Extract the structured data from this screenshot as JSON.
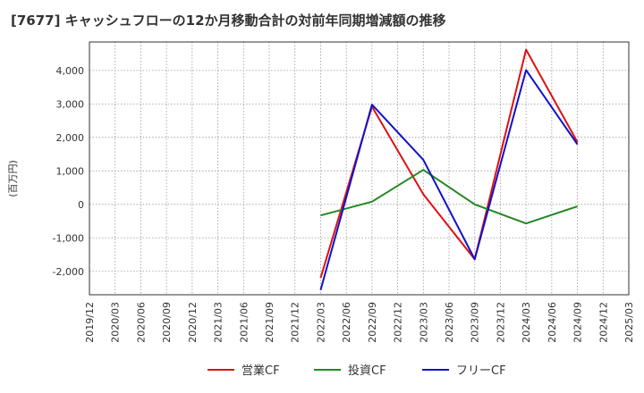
{
  "chart_data": {
    "type": "line",
    "title": "[7677]  キャッシュフローの12か月移動合計の対前年同期増減額の推移",
    "xlabel": "",
    "ylabel": "(百万円)",
    "ylim": [
      -2700,
      4850
    ],
    "yticks": [
      4000,
      3000,
      2000,
      1000,
      0,
      -1000,
      -2000
    ],
    "ytick_labels": [
      "4,000",
      "3,000",
      "2,000",
      "1,000",
      "0",
      "-1,000",
      "-2,000"
    ],
    "x": [
      "2019/12",
      "2020/03",
      "2020/06",
      "2020/09",
      "2020/12",
      "2021/03",
      "2021/06",
      "2021/09",
      "2021/12",
      "2022/03",
      "2022/06",
      "2022/09",
      "2022/12",
      "2023/03",
      "2023/06",
      "2023/09",
      "2023/12",
      "2024/03",
      "2024/06",
      "2024/09",
      "2024/12",
      "2025/03"
    ],
    "grid": true,
    "legend_position": "bottom",
    "series": [
      {
        "name": "営業CF",
        "color": "#dd1111",
        "points": [
          [
            9,
            -2200
          ],
          [
            11,
            2920
          ],
          [
            13,
            300
          ],
          [
            15,
            -1640
          ],
          [
            17,
            4620
          ],
          [
            19,
            1860
          ]
        ]
      },
      {
        "name": "投資CF",
        "color": "#228822",
        "points": [
          [
            9,
            -330
          ],
          [
            11,
            80
          ],
          [
            13,
            1030
          ],
          [
            15,
            0
          ],
          [
            17,
            -570
          ],
          [
            19,
            -60
          ]
        ]
      },
      {
        "name": "フリーCF",
        "color": "#1111cc",
        "points": [
          [
            9,
            -2560
          ],
          [
            11,
            2980
          ],
          [
            13,
            1330
          ],
          [
            15,
            -1640
          ],
          [
            17,
            4010
          ],
          [
            19,
            1790
          ]
        ]
      }
    ]
  }
}
